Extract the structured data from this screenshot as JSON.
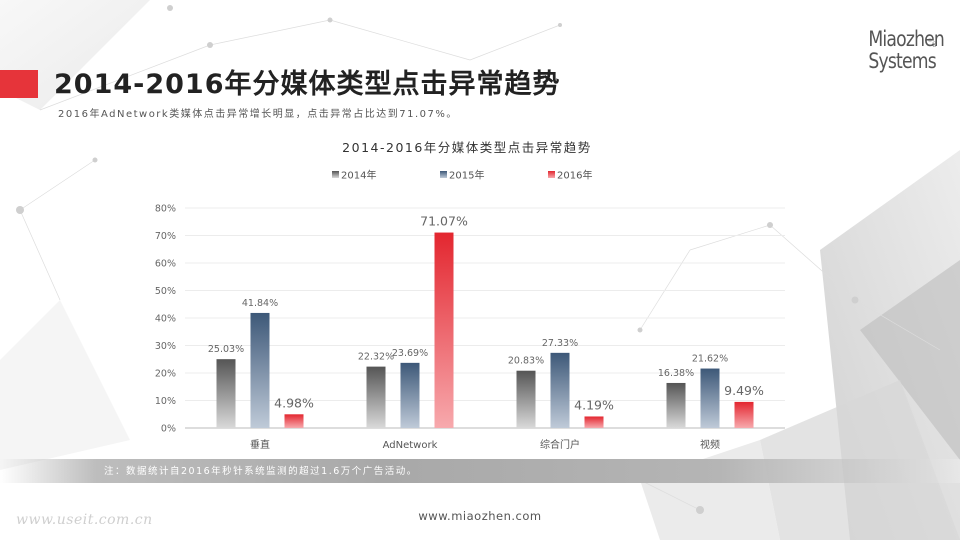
{
  "brand": {
    "logo_line1": "Miaozhen",
    "logo_line2": "Systems",
    "logo_mark": "®"
  },
  "slide": {
    "title": "2014-2016年分媒体类型点击异常趋势",
    "subtitle": "2016年AdNetwork类媒体点击异常增长明显，点击异常占比达到71.07%。",
    "note": "注：数据统计自2016年秒针系统监测的超过1.6万个广告活动。",
    "watermark": "www.useit.com.cn",
    "footer_url": "www.miaozhen.com"
  },
  "colors": {
    "accent": "#e6343a",
    "series_2014": "#555555",
    "series_2015": "#3f5b7c",
    "series_2016": "#e6343a"
  },
  "chart_data": {
    "type": "bar",
    "title": "2014-2016年分媒体类型点击异常趋势",
    "categories": [
      "垂直",
      "AdNetwork",
      "综合门户",
      "视频"
    ],
    "series": [
      {
        "name": "2014年",
        "values": [
          25.03,
          22.32,
          20.83,
          16.38
        ],
        "labels": [
          "25.03%",
          "22.32%",
          "20.83%",
          "16.38%"
        ]
      },
      {
        "name": "2015年",
        "values": [
          41.84,
          23.69,
          27.33,
          21.62
        ],
        "labels": [
          "41.84%",
          "23.69%",
          "27.33%",
          "21.62%"
        ]
      },
      {
        "name": "2016年",
        "values": [
          4.98,
          71.07,
          4.19,
          9.49
        ],
        "labels": [
          "4.98%",
          "71.07%",
          "4.19%",
          "9.49%"
        ]
      }
    ],
    "ylim": [
      0,
      80
    ],
    "y_ticks": [
      "0%",
      "10%",
      "20%",
      "30%",
      "40%",
      "50%",
      "60%",
      "70%",
      "80%"
    ],
    "grid": true,
    "legend_position": "top"
  }
}
